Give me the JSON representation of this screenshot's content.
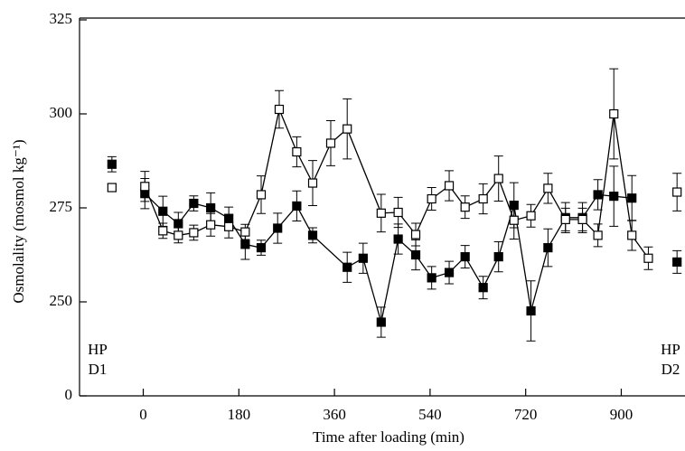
{
  "chart_data": {
    "type": "errorbar-line",
    "xlabel": "Time after loading (min)",
    "ylabel": "Osmolality (mosmol kg⁻¹)",
    "xlim": [
      -120,
      1020
    ],
    "xticks": [
      0,
      180,
      360,
      540,
      720,
      900
    ],
    "ylim": [
      0,
      325
    ],
    "y_break": [
      0,
      225
    ],
    "yticks": [
      0,
      250,
      275,
      300,
      325
    ],
    "annotations": [
      [
        "HP",
        "D1"
      ],
      [
        "HP",
        "D2"
      ]
    ],
    "series": [
      {
        "color": "#000000",
        "fill": "#000000",
        "line": true,
        "x": [
          3,
          37,
          66,
          95,
          127,
          161,
          192,
          222,
          253,
          289,
          319,
          384,
          414,
          448,
          480,
          513,
          543,
          576,
          606,
          640,
          669,
          698,
          730,
          762,
          795,
          827,
          856,
          886,
          920
        ],
        "values": [
          278.8,
          274.1,
          270.8,
          276.2,
          275,
          272.2,
          265.3,
          264.4,
          269.6,
          275.5,
          267.7,
          259.2,
          261.6,
          244.6,
          266.7,
          262.5,
          256.4,
          257.8,
          262,
          253.8,
          262,
          275.7,
          247.6,
          264.4,
          272.4,
          272.4,
          278.5,
          278.1,
          277.6
        ],
        "errors": [
          4,
          4,
          3,
          2,
          4,
          3,
          4,
          2,
          4,
          4,
          2,
          4,
          4,
          4,
          4,
          4,
          3,
          3,
          3,
          3,
          4,
          6,
          8,
          5,
          4,
          4,
          4,
          8,
          6
        ]
      },
      {
        "color": "#000000",
        "fill": "#ffffff",
        "line": true,
        "x": [
          3,
          37,
          66,
          95,
          127,
          161,
          192,
          222,
          256,
          289,
          319,
          353,
          384,
          448,
          480,
          513,
          543,
          576,
          606,
          640,
          669,
          698,
          730,
          762,
          795,
          827,
          856,
          886,
          920,
          951
        ],
        "values": [
          280.7,
          268.9,
          267.7,
          268.4,
          270.5,
          270,
          268.6,
          278.5,
          301.2,
          289.9,
          281.6,
          292.2,
          296,
          273.6,
          273.8,
          267.9,
          277.4,
          280.9,
          275.2,
          277.4,
          282.8,
          271.7,
          272.9,
          280.2,
          271.9,
          271.9,
          267.7,
          300,
          267.7,
          261.6
        ],
        "errors": [
          4,
          2,
          2,
          2,
          3,
          3,
          2,
          5,
          5,
          4,
          6,
          6,
          8,
          5,
          4,
          3,
          3,
          4,
          3,
          4,
          6,
          5,
          3,
          4,
          3,
          3,
          3,
          12,
          4,
          3
        ]
      },
      {
        "color": "#000000",
        "fill": "#000000",
        "line": false,
        "x": [
          -59,
          1005
        ],
        "values": [
          286.6,
          260.6
        ],
        "errors": [
          2,
          3
        ]
      },
      {
        "color": "#000000",
        "fill": "#ffffff",
        "line": false,
        "x": [
          -59,
          1005
        ],
        "values": [
          280.4,
          279.2
        ],
        "errors": [
          1,
          5
        ]
      }
    ]
  }
}
